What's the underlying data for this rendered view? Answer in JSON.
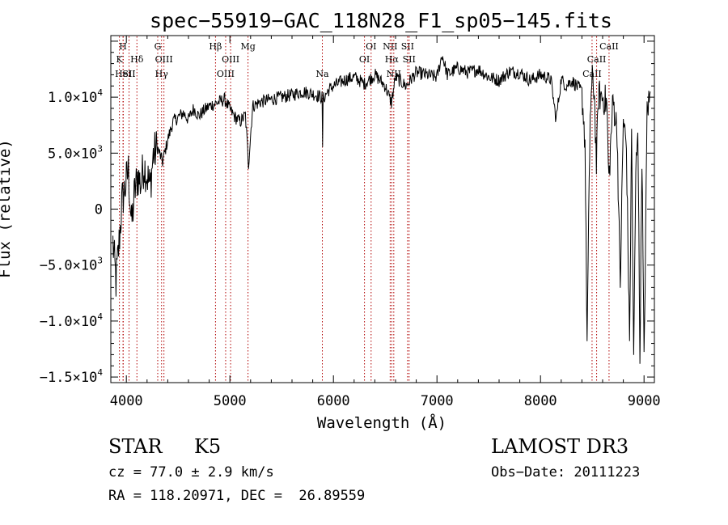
{
  "chart_data": {
    "type": "line",
    "title": "spec−55919−GAC_118N28_F1_sp05−145.fits",
    "xlabel": "Wavelength (Å)",
    "ylabel": "Flux (relative)",
    "xlim": [
      3850,
      9100
    ],
    "ylim": [
      -15500,
      15500
    ],
    "x_ticks": [
      {
        "value": 4000,
        "label": "4000"
      },
      {
        "value": 5000,
        "label": "5000"
      },
      {
        "value": 6000,
        "label": "6000"
      },
      {
        "value": 7000,
        "label": "7000"
      },
      {
        "value": 8000,
        "label": "8000"
      },
      {
        "value": 9000,
        "label": "9000"
      }
    ],
    "y_ticks": [
      {
        "value": 10000,
        "label": "1.0×10",
        "exp": "4"
      },
      {
        "value": 5000,
        "label": "5.0×10",
        "exp": "3"
      },
      {
        "value": 0,
        "label": "0",
        "exp": ""
      },
      {
        "value": -5000,
        "label": "−5.0×10",
        "exp": "3"
      },
      {
        "value": -10000,
        "label": "−1.0×10",
        "exp": "4"
      },
      {
        "value": -15000,
        "label": "−1.5×10",
        "exp": "4"
      }
    ],
    "series": [
      {
        "name": "spectrum",
        "x": [
          3870,
          3900,
          3930,
          3960,
          3990,
          4020,
          4050,
          4080,
          4110,
          4140,
          4170,
          4200,
          4230,
          4260,
          4300,
          4350,
          4400,
          4450,
          4500,
          4550,
          4600,
          4650,
          4700,
          4750,
          4800,
          4850,
          4900,
          4950,
          5000,
          5050,
          5100,
          5150,
          5180,
          5220,
          5300,
          5400,
          5500,
          5600,
          5700,
          5800,
          5890,
          5895,
          5900,
          5950,
          6000,
          6100,
          6200,
          6300,
          6400,
          6500,
          6560,
          6600,
          6700,
          6800,
          6900,
          7000,
          7050,
          7100,
          7200,
          7300,
          7400,
          7500,
          7600,
          7700,
          7800,
          7900,
          8000,
          8100,
          8150,
          8200,
          8250,
          8300,
          8350,
          8400,
          8430,
          8450,
          8480,
          8500,
          8520,
          8540,
          8560,
          8600,
          8640,
          8660,
          8700,
          8740,
          8770,
          8800,
          8830,
          8860,
          8880,
          8900,
          8920,
          8940,
          8960,
          8980,
          9000,
          9030,
          9060
        ],
        "y": [
          -3000,
          -6500,
          -3000,
          800,
          2000,
          3500,
          -1500,
          1500,
          3000,
          2200,
          4000,
          3000,
          2000,
          4800,
          5500,
          4200,
          6200,
          7800,
          8200,
          8600,
          8000,
          9000,
          8300,
          8800,
          9200,
          9400,
          9600,
          9800,
          8900,
          8200,
          7800,
          8400,
          4000,
          9200,
          9600,
          9800,
          10000,
          10200,
          10500,
          10300,
          10000,
          5200,
          9800,
          10600,
          11000,
          11500,
          11800,
          11200,
          12000,
          11000,
          9500,
          11800,
          11000,
          12200,
          12000,
          11800,
          13800,
          12000,
          12600,
          12200,
          12500,
          11800,
          11500,
          12300,
          12200,
          11500,
          12000,
          11600,
          8000,
          11600,
          11000,
          11500,
          11000,
          10500,
          6000,
          -12000,
          8500,
          11500,
          10500,
          4000,
          10200,
          10000,
          9500,
          2500,
          9800,
          7000,
          -7000,
          8000,
          5500,
          -12000,
          7000,
          -14000,
          3000,
          8000,
          -13000,
          5000,
          -14000,
          9000,
          10000
        ]
      }
    ],
    "line_marks": [
      {
        "wavelength": 3933,
        "row": 2,
        "label": "K"
      },
      {
        "wavelength": 3968,
        "row": 1,
        "label": "H"
      },
      {
        "wavelength": 3970,
        "row": 3,
        "label": "HeI"
      },
      {
        "wavelength": 4026,
        "row": 3,
        "label": "SII"
      },
      {
        "wavelength": 4102,
        "row": 2,
        "label": "Hδ"
      },
      {
        "wavelength": 4303,
        "row": 1,
        "label": "G"
      },
      {
        "wavelength": 4340,
        "row": 3,
        "label": "Hγ"
      },
      {
        "wavelength": 4363,
        "row": 2,
        "label": "OIII"
      },
      {
        "wavelength": 4861,
        "row": 1,
        "label": "Hβ"
      },
      {
        "wavelength": 4959,
        "row": 3,
        "label": "OIII"
      },
      {
        "wavelength": 5007,
        "row": 2,
        "label": "OIII"
      },
      {
        "wavelength": 5175,
        "row": 1,
        "label": "Mg"
      },
      {
        "wavelength": 5893,
        "row": 3,
        "label": "Na"
      },
      {
        "wavelength": 6300,
        "row": 2,
        "label": "OI"
      },
      {
        "wavelength": 6364,
        "row": 1,
        "label": "OI"
      },
      {
        "wavelength": 6548,
        "row": 1,
        "label": "NII"
      },
      {
        "wavelength": 6563,
        "row": 2,
        "label": "Hα"
      },
      {
        "wavelength": 6583,
        "row": 3,
        "label": "NII"
      },
      {
        "wavelength": 6716,
        "row": 1,
        "label": "SII"
      },
      {
        "wavelength": 6731,
        "row": 2,
        "label": "SII"
      },
      {
        "wavelength": 8498,
        "row": 3,
        "label": "CaII"
      },
      {
        "wavelength": 8542,
        "row": 2,
        "label": "CaII"
      },
      {
        "wavelength": 8662,
        "row": 1,
        "label": "CaII"
      }
    ]
  },
  "info": {
    "object_class": "STAR",
    "subclass": "K5",
    "survey": "LAMOST DR3",
    "redshift": "cz = 77.0 ± 2.9 km/s",
    "obs_date": "Obs−Date: 20111223",
    "coords": "RA = 118.20971, DEC =  26.89559"
  }
}
